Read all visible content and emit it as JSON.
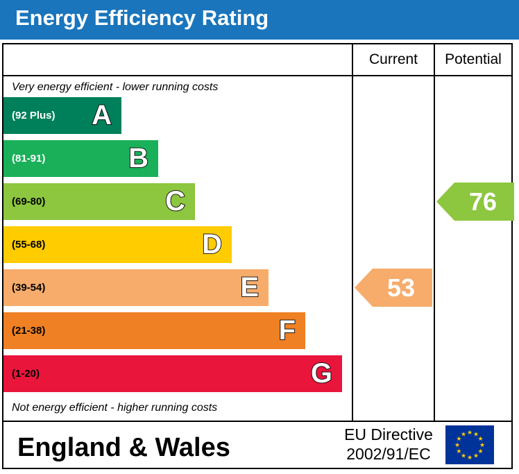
{
  "header": {
    "title": "Energy Efficiency Rating"
  },
  "columns": {
    "current": "Current",
    "potential": "Potential"
  },
  "notes": {
    "top": "Very energy efficient - lower running costs",
    "bottom": "Not energy efficient - higher running costs"
  },
  "footer": {
    "region": "England & Wales",
    "directive_line1": "EU Directive",
    "directive_line2": "2002/91/EC",
    "flag_icon": "eu-flag-icon"
  },
  "chart_data": {
    "type": "bar",
    "title": "Energy Efficiency Rating",
    "categories": [
      "A",
      "B",
      "C",
      "D",
      "E",
      "F",
      "G"
    ],
    "bands": [
      {
        "letter": "A",
        "range": "(92 Plus)",
        "color": "#00805a",
        "range_color": "#ffffff"
      },
      {
        "letter": "B",
        "range": "(81-91)",
        "color": "#1ab059",
        "range_color": "#ffffff"
      },
      {
        "letter": "C",
        "range": "(69-80)",
        "color": "#8dc63f",
        "range_color": "#000000"
      },
      {
        "letter": "D",
        "range": "(55-68)",
        "color": "#ffcc00",
        "range_color": "#000000"
      },
      {
        "letter": "E",
        "range": "(39-54)",
        "color": "#f7ac6b",
        "range_color": "#000000"
      },
      {
        "letter": "F",
        "range": "(21-38)",
        "color": "#ef8023",
        "range_color": "#000000"
      },
      {
        "letter": "G",
        "range": "(1-20)",
        "color": "#e9153b",
        "range_color": "#000000"
      }
    ],
    "current": {
      "value": 53,
      "band": "E",
      "color": "#f7ac6b"
    },
    "potential": {
      "value": 76,
      "band": "C",
      "color": "#8dc63f"
    }
  }
}
